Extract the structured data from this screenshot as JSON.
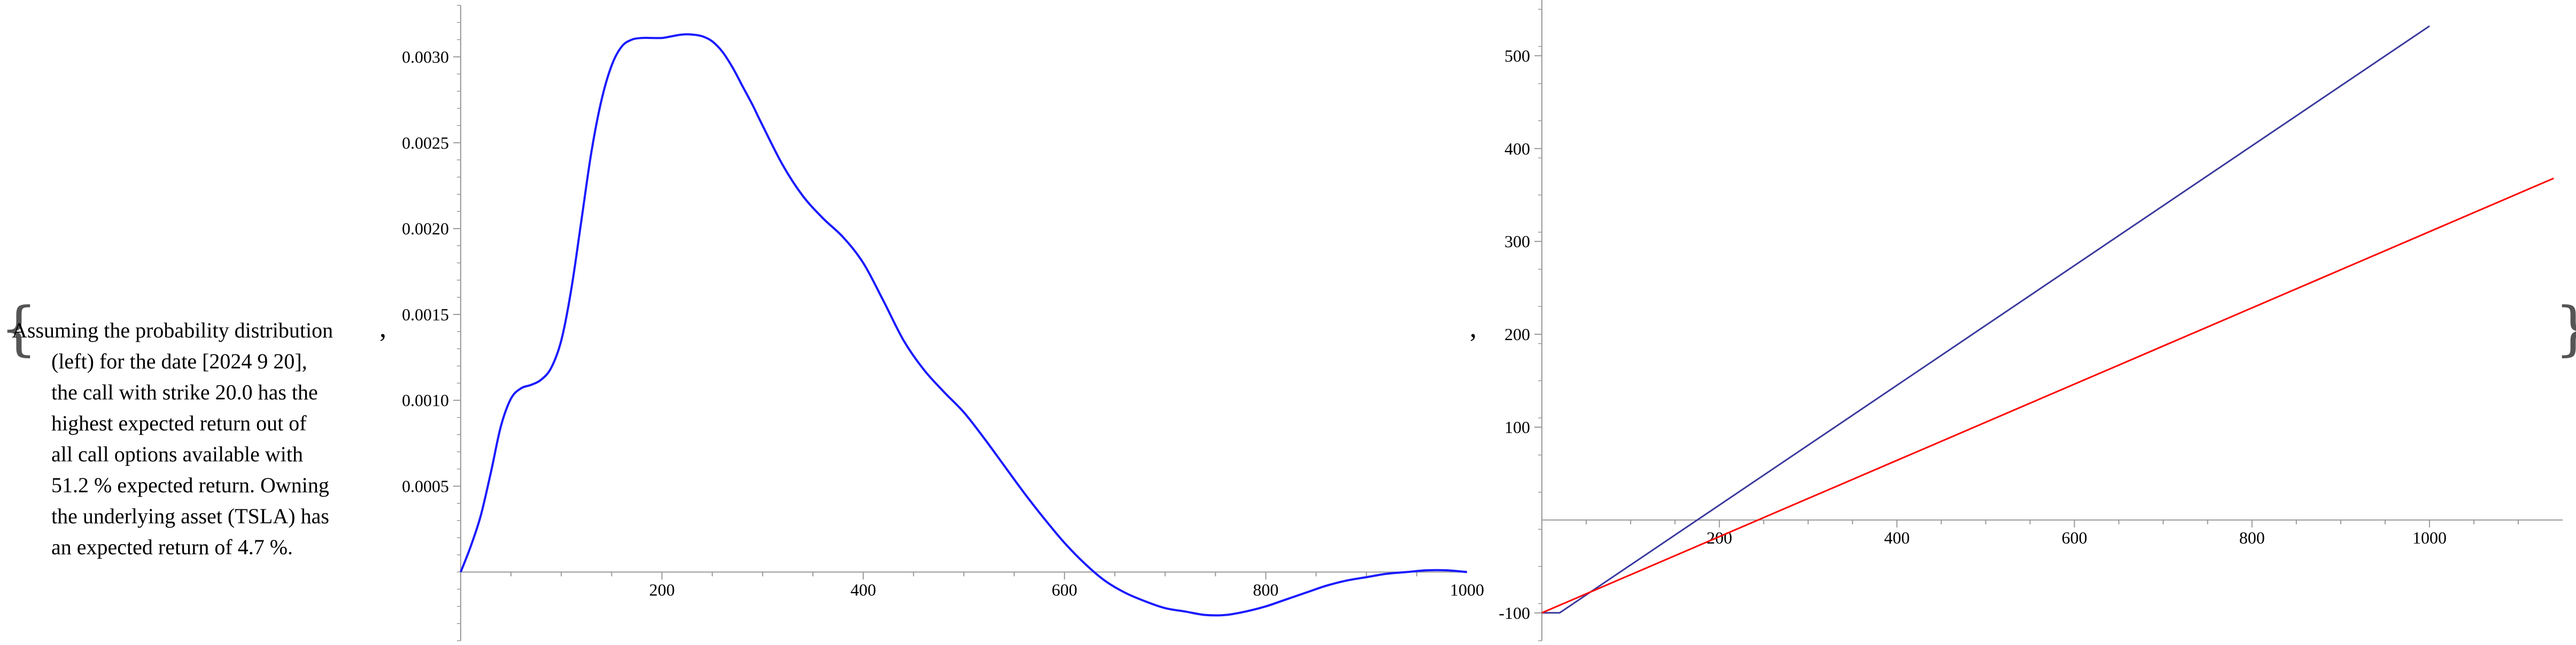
{
  "description": {
    "lines": [
      "Assuming the probability distribution",
      "(left) for the date [2024 9 20],",
      "the call with strike 20.0 has the",
      "highest expected return out of",
      "all call options available with",
      "51.2 % expected return. Owning",
      "the underlying asset (TSLA) has",
      "an expected return of 4.7 %."
    ]
  },
  "punctuation": {
    "open_brace": "{",
    "close_brace": "}",
    "comma": ","
  },
  "colors": {
    "density_line": "#1a1aff",
    "call_return": "#3a3a9e",
    "asset_return": "#ff0000",
    "axis": "#999999"
  },
  "chart_data": [
    {
      "type": "line",
      "xlim": [
        0,
        1000
      ],
      "ylim": [
        -0.0004,
        0.0033
      ],
      "x_ticks": [
        200,
        400,
        600,
        800,
        1000
      ],
      "y_ticks": [
        0.0005,
        0.001,
        0.0015,
        0.002,
        0.0025,
        0.003
      ],
      "x_tick_labels": [
        "200",
        "400",
        "600",
        "800",
        "1000"
      ],
      "y_tick_labels": [
        "0.0005",
        "0.0010",
        "0.0015",
        "0.0020",
        "0.0025",
        "0.0030"
      ],
      "series": [
        {
          "color": "#1a1aff",
          "x": [
            0,
            10,
            20,
            30,
            40,
            50,
            60,
            70,
            80,
            90,
            100,
            110,
            120,
            130,
            140,
            150,
            160,
            170,
            180,
            190,
            200,
            210,
            220,
            230,
            240,
            250,
            260,
            270,
            280,
            290,
            300,
            320,
            340,
            360,
            380,
            400,
            420,
            440,
            460,
            480,
            500,
            520,
            540,
            560,
            580,
            600,
            620,
            640,
            660,
            680,
            700,
            720,
            740,
            760,
            780,
            800,
            820,
            840,
            860,
            880,
            900,
            920,
            940,
            960,
            980,
            1000
          ],
          "y": [
            0,
            0.00015,
            0.00033,
            0.00058,
            0.00085,
            0.00101,
            0.00107,
            0.00109,
            0.00112,
            0.00119,
            0.00135,
            0.00165,
            0.00205,
            0.00245,
            0.00275,
            0.00295,
            0.00306,
            0.0031,
            0.00311,
            0.00311,
            0.00311,
            0.00312,
            0.00313,
            0.00313,
            0.00312,
            0.00309,
            0.00303,
            0.00294,
            0.00283,
            0.00272,
            0.0026,
            0.00237,
            0.00219,
            0.00206,
            0.00195,
            0.0018,
            0.00158,
            0.00135,
            0.00118,
            0.00105,
            0.00093,
            0.00078,
            0.00062,
            0.00046,
            0.00031,
            0.00017,
            5e-05,
            -5e-05,
            -0.00012,
            -0.00017,
            -0.00021,
            -0.00023,
            -0.00025,
            -0.00025,
            -0.00023,
            -0.0002,
            -0.00016,
            -0.00012,
            -8e-05,
            -5e-05,
            -3e-05,
            -1e-05,
            0,
            1e-05,
            1e-05,
            0
          ]
        }
      ]
    },
    {
      "type": "line",
      "xlim": [
        0,
        1150
      ],
      "ylim": [
        -130,
        560
      ],
      "x_ticks": [
        200,
        400,
        600,
        800,
        1000
      ],
      "y_ticks": [
        -100,
        100,
        200,
        300,
        400,
        500
      ],
      "x_tick_labels": [
        "200",
        "400",
        "600",
        "800",
        "1000"
      ],
      "y_tick_labels": [
        "-100",
        "100",
        "200",
        "300",
        "400",
        "500"
      ],
      "series": [
        {
          "color": "#3a3a9e",
          "x": [
            0,
            20,
            1000
          ],
          "y": [
            -100,
            -100,
            532
          ]
        },
        {
          "color": "#ff0000",
          "x": [
            0,
            1140
          ],
          "y": [
            -100,
            368
          ]
        }
      ]
    }
  ]
}
